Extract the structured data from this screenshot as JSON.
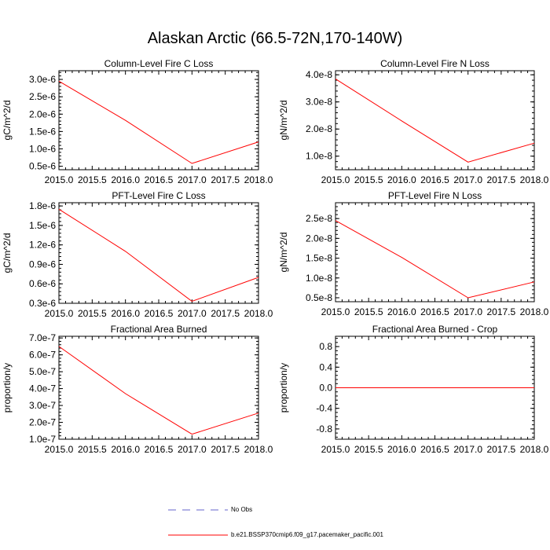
{
  "title": "Alaskan Arctic (66.5-72N,170-140W)",
  "chart_data": [
    {
      "type": "line",
      "title": "Column-Level Fire C Loss",
      "ylabel": "gC/m^2/d",
      "x": [
        2015,
        2016,
        2017,
        2018
      ],
      "xlim": [
        2015,
        2018
      ],
      "xticks": [
        "2015.0",
        "2015.5",
        "2016.0",
        "2016.5",
        "2017.0",
        "2017.5",
        "2018.0"
      ],
      "ylim": [
        4e-07,
        3.25e-06
      ],
      "yticks": [
        "0.5e-6",
        "1.0e-6",
        "1.5e-6",
        "2.0e-6",
        "2.5e-6",
        "3.0e-6"
      ],
      "series": [
        {
          "name": "b.e21.BSSP370cmip6.f09_g17.pacemaker_pacific.001",
          "color": "#ff0000",
          "values": [
            2.95e-06,
            1.82e-06,
            5.8e-07,
            1.2e-06
          ]
        }
      ]
    },
    {
      "type": "line",
      "title": "Column-Level Fire N Loss",
      "ylabel": "gN/m^2/d",
      "x": [
        2015,
        2016,
        2017,
        2018
      ],
      "xlim": [
        2015,
        2018
      ],
      "xticks": [
        "2015.0",
        "2015.5",
        "2016.0",
        "2016.5",
        "2017.0",
        "2017.5",
        "2018.0"
      ],
      "ylim": [
        5e-09,
        4.15e-08
      ],
      "yticks": [
        "1.0e-8",
        "2.0e-8",
        "3.0e-8",
        "4.0e-8"
      ],
      "series": [
        {
          "name": "b.e21.BSSP370cmip6.f09_g17.pacemaker_pacific.001",
          "color": "#ff0000",
          "values": [
            3.85e-08,
            2.3e-08,
            7.8e-09,
            1.48e-08
          ]
        }
      ]
    },
    {
      "type": "line",
      "title": "PFT-Level Fire C Loss",
      "ylabel": "gC/m^2/d",
      "x": [
        2015,
        2016,
        2017,
        2018
      ],
      "xlim": [
        2015,
        2018
      ],
      "xticks": [
        "2015.0",
        "2015.5",
        "2016.0",
        "2016.5",
        "2017.0",
        "2017.5",
        "2018.0"
      ],
      "ylim": [
        3e-07,
        1.85e-06
      ],
      "yticks": [
        "0.3e-6",
        "0.6e-6",
        "0.9e-6",
        "1.2e-6",
        "1.5e-6",
        "1.8e-6"
      ],
      "series": [
        {
          "name": "b.e21.BSSP370cmip6.f09_g17.pacemaker_pacific.001",
          "color": "#ff0000",
          "values": [
            1.75e-06,
            1.1e-06,
            3.3e-07,
            7e-07
          ]
        }
      ]
    },
    {
      "type": "line",
      "title": "PFT-Level Fire N Loss",
      "ylabel": "gN/m^2/d",
      "x": [
        2015,
        2016,
        2017,
        2018
      ],
      "xlim": [
        2015,
        2018
      ],
      "xticks": [
        "2015.0",
        "2015.5",
        "2016.0",
        "2016.5",
        "2017.0",
        "2017.5",
        "2018.0"
      ],
      "ylim": [
        4e-09,
        2.9e-08
      ],
      "yticks": [
        "0.5e-8",
        "1.0e-8",
        "1.5e-8",
        "2.0e-8",
        "2.5e-8"
      ],
      "series": [
        {
          "name": "b.e21.BSSP370cmip6.f09_g17.pacemaker_pacific.001",
          "color": "#ff0000",
          "values": [
            2.45e-08,
            1.52e-08,
            5e-09,
            9e-09
          ]
        }
      ]
    },
    {
      "type": "line",
      "title": "Fractional Area Burned",
      "ylabel": "proportion/y",
      "x": [
        2015,
        2016,
        2017,
        2018
      ],
      "xlim": [
        2015,
        2018
      ],
      "xticks": [
        "2015.0",
        "2015.5",
        "2016.0",
        "2016.5",
        "2017.0",
        "2017.5",
        "2018.0"
      ],
      "ylim": [
        1e-07,
        7.1e-07
      ],
      "yticks": [
        "1.0e-7",
        "2.0e-7",
        "3.0e-7",
        "4.0e-7",
        "5.0e-7",
        "6.0e-7",
        "7.0e-7"
      ],
      "series": [
        {
          "name": "b.e21.BSSP370cmip6.f09_g17.pacemaker_pacific.001",
          "color": "#ff0000",
          "values": [
            6.5e-07,
            3.7e-07,
            1.3e-07,
            2.55e-07
          ]
        }
      ]
    },
    {
      "type": "line",
      "title": "Fractional Area Burned - Crop",
      "ylabel": "proportion/y",
      "x": [
        2015,
        2016,
        2017,
        2018
      ],
      "xlim": [
        2015,
        2018
      ],
      "xticks": [
        "2015.0",
        "2015.5",
        "2016.0",
        "2016.5",
        "2017.0",
        "2017.5",
        "2018.0"
      ],
      "ylim": [
        -1.0,
        1.0
      ],
      "yticks": [
        "-0.8",
        "-0.4",
        "0.0",
        "0.4",
        "0.8"
      ],
      "series": [
        {
          "name": "b.e21.BSSP370cmip6.f09_g17.pacemaker_pacific.001",
          "color": "#ff0000",
          "values": [
            0.0,
            0.0,
            0.0,
            0.0
          ]
        }
      ]
    }
  ],
  "legend": {
    "items": [
      {
        "label": "No Obs",
        "color": "#6666cc",
        "style": "dashed"
      },
      {
        "label": "b.e21.BSSP370cmip6.f09_g17.pacemaker_pacific.001",
        "color": "#ff0000",
        "style": "solid"
      }
    ]
  }
}
